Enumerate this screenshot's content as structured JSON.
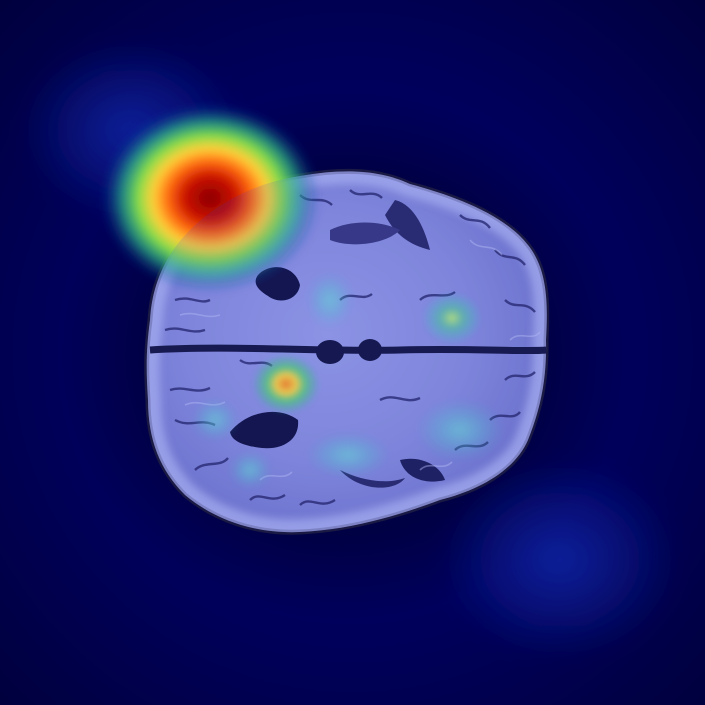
{
  "image": {
    "subject": "axial-brain-mri-slice",
    "overlay": "heatmap",
    "colors": {
      "background": "#00005a",
      "background_dark": "#00002a",
      "tissue_light": "#b9bff0",
      "tissue_mid": "#8c90d8",
      "tissue_dark": "#4a4a8a",
      "sulci": "#16163a",
      "heat_red": "#b00000",
      "heat_orange": "#ff7a1a",
      "heat_yellow": "#ffe14a",
      "heat_green": "#39c96a",
      "heat_cyan": "#2fd6c8"
    }
  }
}
